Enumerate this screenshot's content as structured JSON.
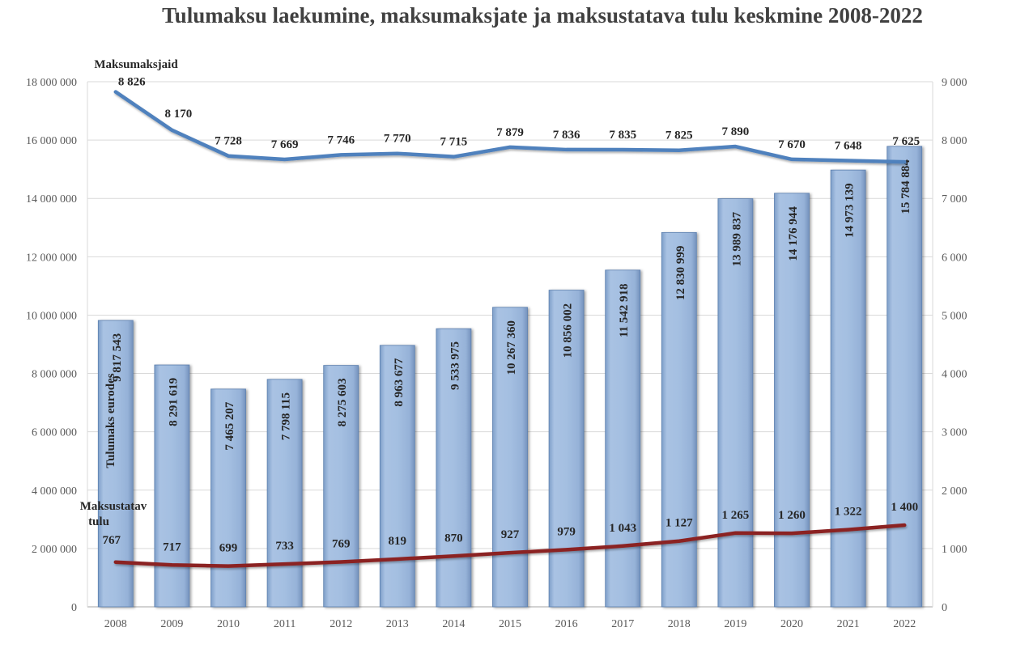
{
  "chart_data": {
    "type": "bar",
    "title": "Tulumaksu laekumine, maksumaksjate ja maksustatava tulu keskmine 2008-2022",
    "categories": [
      "2008",
      "2009",
      "2010",
      "2011",
      "2012",
      "2013",
      "2014",
      "2015",
      "2016",
      "2017",
      "2018",
      "2019",
      "2020",
      "2021",
      "2022"
    ],
    "y_left": {
      "ylim": [
        0,
        18000000
      ],
      "ticks": [
        "0",
        "2 000 000",
        "4 000 000",
        "6 000 000",
        "8 000 000",
        "10 000 000",
        "12 000 000",
        "14 000 000",
        "16 000 000",
        "18 000 000"
      ]
    },
    "y_right": {
      "ylim": [
        0,
        9000
      ],
      "ticks": [
        "0",
        "1 000",
        "2 000",
        "3 000",
        "4 000",
        "5 000",
        "6 000",
        "7 000",
        "8 000",
        "9 000"
      ]
    },
    "grid": true,
    "series": [
      {
        "name": "Tulumaks eurodes",
        "type": "bar",
        "axis": "left",
        "color": "#95b3d7",
        "values": [
          9817543,
          8291619,
          7465207,
          7798115,
          8275603,
          8963677,
          9533975,
          10267360,
          10856002,
          11542918,
          12830999,
          13989837,
          14176944,
          14973139,
          15784884
        ],
        "labels": [
          "9 817 543",
          "8 291 619",
          "7 465 207",
          "7 798 115",
          "8 275 603",
          "8 963 677",
          "9 533 975",
          "10 267 360",
          "10 856 002",
          "11 542 918",
          "12 830 999",
          "13 989 837",
          "14 176 944",
          "14 973 139",
          "15 784 884"
        ]
      },
      {
        "name": "Maksumaksjaid",
        "type": "line",
        "axis": "right",
        "color": "#4f81bd",
        "values": [
          8826,
          8170,
          7728,
          7669,
          7746,
          7770,
          7715,
          7879,
          7836,
          7835,
          7825,
          7890,
          7670,
          7648,
          7625
        ],
        "labels": [
          "8 826",
          "8 170",
          "7 728",
          "7 669",
          "7 746",
          "7 770",
          "7 715",
          "7 879",
          "7 836",
          "7 835",
          "7 825",
          "7 890",
          "7 670",
          "7 648",
          "7 625"
        ]
      },
      {
        "name": "Maksustatav tulu",
        "name_lines": [
          "Maksustatav",
          "tulu"
        ],
        "type": "line",
        "axis": "right",
        "color": "#8b2323",
        "values": [
          767,
          717,
          699,
          733,
          769,
          819,
          870,
          927,
          979,
          1043,
          1127,
          1265,
          1260,
          1322,
          1400
        ],
        "labels": [
          "767",
          "717",
          "699",
          "733",
          "769",
          "819",
          "870",
          "927",
          "979",
          "1 043",
          "1 127",
          "1 265",
          "1 260",
          "1 322",
          "1 400"
        ]
      }
    ]
  }
}
